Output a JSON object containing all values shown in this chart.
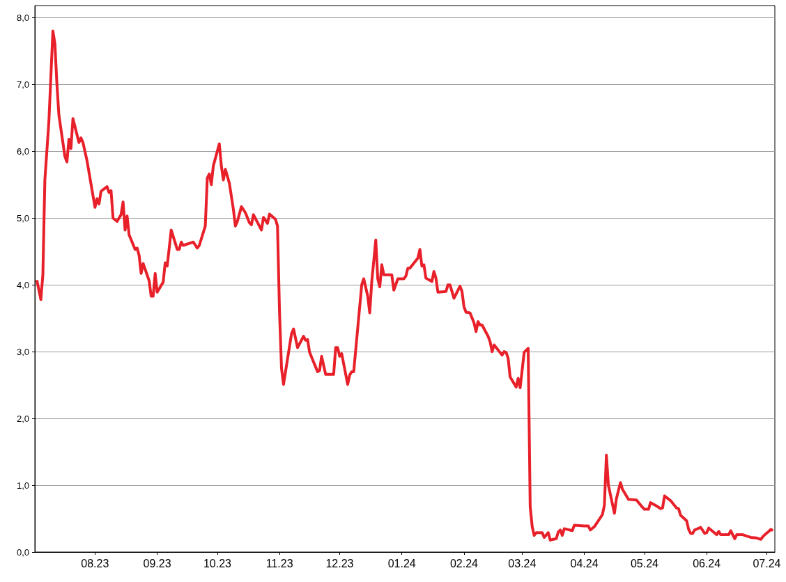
{
  "chart_data": {
    "type": "line",
    "x": [
      "2023-07-03",
      "2023-07-05",
      "2023-07-06",
      "2023-07-07",
      "2023-07-09",
      "2023-07-11",
      "2023-07-12",
      "2023-07-13",
      "2023-07-14",
      "2023-07-17",
      "2023-07-18",
      "2023-07-19",
      "2023-07-20",
      "2023-07-21",
      "2023-07-24",
      "2023-07-25",
      "2023-07-26",
      "2023-07-28",
      "2023-08-01",
      "2023-08-02",
      "2023-08-03",
      "2023-08-04",
      "2023-08-07",
      "2023-08-08",
      "2023-08-09",
      "2023-08-10",
      "2023-08-12",
      "2023-08-14",
      "2023-08-15",
      "2023-08-16",
      "2023-08-17",
      "2023-08-18",
      "2023-08-21",
      "2023-08-22",
      "2023-08-23",
      "2023-08-24",
      "2023-08-25",
      "2023-08-28",
      "2023-08-29",
      "2023-08-30",
      "2023-08-31",
      "2023-09-01",
      "2023-09-04",
      "2023-09-05",
      "2023-09-06",
      "2023-09-08",
      "2023-09-11",
      "2023-09-12",
      "2023-09-13",
      "2023-09-14",
      "2023-09-18",
      "2023-09-19",
      "2023-09-21",
      "2023-09-22",
      "2023-09-25",
      "2023-09-26",
      "2023-09-27",
      "2023-09-28",
      "2023-09-29",
      "2023-10-02",
      "2023-10-03",
      "2023-10-04",
      "2023-10-05",
      "2023-10-07",
      "2023-10-09",
      "2023-10-10",
      "2023-10-11",
      "2023-10-13",
      "2023-10-15",
      "2023-10-17",
      "2023-10-18",
      "2023-10-19",
      "2023-10-23",
      "2023-10-24",
      "2023-10-26",
      "2023-10-27",
      "2023-10-30",
      "2023-10-31",
      "2023-11-01",
      "2023-11-02",
      "2023-11-03",
      "2023-11-07",
      "2023-11-08",
      "2023-11-10",
      "2023-11-13",
      "2023-11-14",
      "2023-11-15",
      "2023-11-16",
      "2023-11-20",
      "2023-11-21",
      "2023-11-22",
      "2023-11-24",
      "2023-11-28",
      "2023-11-29",
      "2023-11-30",
      "2023-12-01",
      "2023-12-02",
      "2023-12-05",
      "2023-12-06",
      "2023-12-07",
      "2023-12-08",
      "2023-12-12",
      "2023-12-13",
      "2023-12-15",
      "2023-12-16",
      "2023-12-17",
      "2023-12-19",
      "2023-12-20",
      "2023-12-21",
      "2023-12-22",
      "2023-12-23",
      "2023-12-27",
      "2023-12-28",
      "2023-12-30",
      "2024-01-02",
      "2024-01-03",
      "2024-01-04",
      "2024-01-05",
      "2024-01-09",
      "2024-01-10",
      "2024-01-11",
      "2024-01-12",
      "2024-01-13",
      "2024-01-16",
      "2024-01-17",
      "2024-01-18",
      "2024-01-19",
      "2024-01-23",
      "2024-01-24",
      "2024-01-25",
      "2024-01-27",
      "2024-01-30",
      "2024-01-31",
      "2024-02-01",
      "2024-02-02",
      "2024-02-04",
      "2024-02-06",
      "2024-02-07",
      "2024-02-08",
      "2024-02-09",
      "2024-02-10",
      "2024-02-13",
      "2024-02-14",
      "2024-02-15",
      "2024-02-16",
      "2024-02-20",
      "2024-02-21",
      "2024-02-22",
      "2024-02-23",
      "2024-02-24",
      "2024-02-27",
      "2024-02-28",
      "2024-02-29",
      "2024-03-02",
      "2024-03-03",
      "2024-03-04",
      "2024-03-05",
      "2024-03-06",
      "2024-03-07",
      "2024-03-08",
      "2024-03-11",
      "2024-03-12",
      "2024-03-14",
      "2024-03-15",
      "2024-03-18",
      "2024-03-19",
      "2024-03-20",
      "2024-03-21",
      "2024-03-22",
      "2024-03-26",
      "2024-03-27",
      "2024-04-01",
      "2024-04-03",
      "2024-04-04",
      "2024-04-06",
      "2024-04-10",
      "2024-04-11",
      "2024-04-12",
      "2024-04-13",
      "2024-04-16",
      "2024-04-17",
      "2024-04-19",
      "2024-04-20",
      "2024-04-23",
      "2024-04-27",
      "2024-04-30",
      "2024-05-01",
      "2024-05-03",
      "2024-05-04",
      "2024-05-07",
      "2024-05-09",
      "2024-05-10",
      "2024-05-11",
      "2024-05-14",
      "2024-05-17",
      "2024-05-18",
      "2024-05-19",
      "2024-05-22",
      "2024-05-23",
      "2024-05-24",
      "2024-05-25",
      "2024-05-26",
      "2024-05-29",
      "2024-05-31",
      "2024-06-01",
      "2024-06-02",
      "2024-06-06",
      "2024-06-07",
      "2024-06-08",
      "2024-06-12",
      "2024-06-13",
      "2024-06-15",
      "2024-06-16",
      "2024-06-19",
      "2024-06-23",
      "2024-06-26",
      "2024-06-28",
      "2024-06-29",
      "2024-06-30",
      "2024-07-02",
      "2024-07-03",
      "2024-07-04"
    ],
    "series": [
      {
        "color": "#e8202a",
        "values": [
          4.07,
          3.78,
          4.15,
          5.57,
          6.44,
          7.8,
          7.61,
          7.01,
          6.54,
          5.92,
          5.84,
          6.18,
          6.04,
          6.49,
          6.13,
          6.2,
          6.13,
          5.86,
          5.16,
          5.29,
          5.21,
          5.4,
          5.47,
          5.38,
          5.41,
          5.0,
          4.95,
          5.05,
          5.24,
          4.82,
          5.03,
          4.75,
          4.53,
          4.55,
          4.44,
          4.17,
          4.32,
          4.06,
          3.83,
          3.83,
          4.17,
          3.89,
          4.04,
          4.33,
          4.28,
          4.82,
          4.53,
          4.53,
          4.64,
          4.59,
          4.63,
          4.64,
          4.55,
          4.59,
          4.88,
          5.6,
          5.66,
          5.5,
          5.78,
          6.11,
          5.78,
          5.57,
          5.73,
          5.52,
          5.13,
          4.88,
          4.95,
          5.17,
          5.08,
          4.93,
          4.9,
          5.05,
          4.82,
          5.01,
          4.92,
          5.06,
          4.98,
          4.88,
          3.6,
          2.75,
          2.51,
          3.27,
          3.34,
          3.06,
          3.23,
          3.17,
          3.18,
          2.99,
          2.7,
          2.72,
          2.93,
          2.66,
          2.66,
          3.06,
          3.06,
          2.93,
          2.97,
          2.51,
          2.65,
          2.7,
          2.7,
          4.0,
          4.09,
          3.83,
          3.58,
          4.05,
          4.67,
          4.09,
          3.97,
          4.3,
          4.15,
          4.15,
          3.92,
          4.09,
          4.09,
          4.13,
          4.25,
          4.25,
          4.4,
          4.53,
          4.28,
          4.3,
          4.1,
          4.05,
          4.2,
          4.1,
          3.89,
          3.9,
          4.0,
          4.0,
          3.8,
          3.98,
          3.9,
          3.67,
          3.59,
          3.58,
          3.43,
          3.3,
          3.45,
          3.4,
          3.4,
          3.23,
          3.15,
          3.0,
          3.1,
          2.95,
          3.0,
          2.99,
          2.9,
          2.62,
          2.47,
          2.6,
          2.46,
          2.99,
          3.02,
          3.05,
          0.68,
          0.38,
          0.25,
          0.29,
          0.29,
          0.22,
          0.29,
          0.18,
          0.2,
          0.3,
          0.33,
          0.25,
          0.35,
          0.32,
          0.4,
          0.39,
          0.39,
          0.33,
          0.38,
          0.56,
          0.7,
          1.45,
          1.0,
          0.58,
          0.8,
          1.04,
          0.94,
          0.79,
          0.78,
          0.67,
          0.64,
          0.64,
          0.74,
          0.69,
          0.65,
          0.66,
          0.84,
          0.77,
          0.66,
          0.65,
          0.55,
          0.47,
          0.34,
          0.28,
          0.28,
          0.33,
          0.37,
          0.28,
          0.29,
          0.36,
          0.26,
          0.31,
          0.26,
          0.26,
          0.32,
          0.2,
          0.26,
          0.26,
          0.22,
          0.21,
          0.19,
          0.23,
          0.26,
          0.31,
          0.34,
          0.32
        ]
      }
    ],
    "xlim": [
      "2023-07-02",
      "2024-07-05"
    ],
    "xticks": [
      {
        "value": "2023-08-01",
        "label": "08.23"
      },
      {
        "value": "2023-09-01",
        "label": "09.23"
      },
      {
        "value": "2023-10-01",
        "label": "10.23"
      },
      {
        "value": "2023-11-01",
        "label": "11.23"
      },
      {
        "value": "2023-12-01",
        "label": "12.23"
      },
      {
        "value": "2024-01-01",
        "label": "01.24"
      },
      {
        "value": "2024-02-01",
        "label": "02.24"
      },
      {
        "value": "2024-03-01",
        "label": "03.24"
      },
      {
        "value": "2024-04-01",
        "label": "04.24"
      },
      {
        "value": "2024-05-01",
        "label": "05.24"
      },
      {
        "value": "2024-06-01",
        "label": "06.24"
      },
      {
        "value": "2024-07-01",
        "label": "07.24"
      }
    ],
    "ylim": [
      0,
      8.18
    ],
    "yticks": [
      {
        "value": 0,
        "label": "0,0"
      },
      {
        "value": 1,
        "label": "1,0"
      },
      {
        "value": 2,
        "label": "2,0"
      },
      {
        "value": 3,
        "label": "3,0"
      },
      {
        "value": 4,
        "label": "4,0"
      },
      {
        "value": 5,
        "label": "5,0"
      },
      {
        "value": 6,
        "label": "6,0"
      },
      {
        "value": 7,
        "label": "7,0"
      },
      {
        "value": 8,
        "label": "8,0"
      }
    ],
    "grid": "y",
    "marker": "none",
    "line_style": "solid"
  }
}
